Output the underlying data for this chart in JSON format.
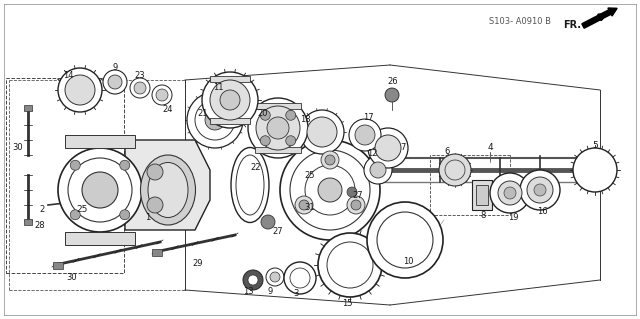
{
  "bg_color": "#ffffff",
  "line_color": "#1a1a1a",
  "text_color": "#1a1a1a",
  "watermark": "S103- A0910 B",
  "fr_label": "FR.",
  "fig_width": 6.4,
  "fig_height": 3.19,
  "dpi": 100
}
